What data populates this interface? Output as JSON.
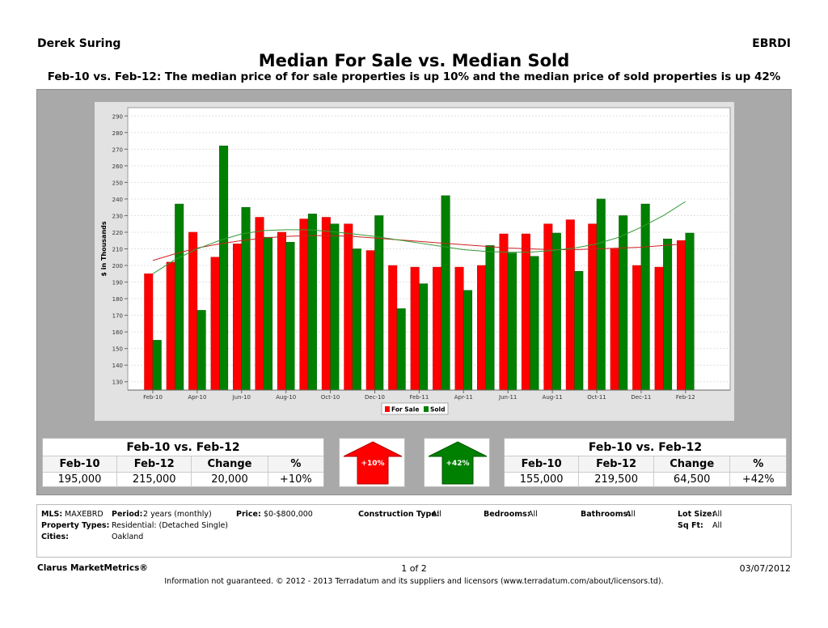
{
  "header": {
    "agent": "Derek Suring",
    "org": "EBRDI",
    "title": "Median For Sale vs. Median Sold",
    "subtitle": "Feb-10 vs. Feb-12:  The median price of for sale properties is up 10% and the median price of sold properties is up 42%"
  },
  "chart_data": {
    "type": "bar",
    "ylabel": "$ in Thousands",
    "ylim": [
      125,
      295
    ],
    "yticks": [
      130,
      140,
      150,
      160,
      170,
      180,
      190,
      200,
      210,
      220,
      230,
      240,
      250,
      260,
      270,
      280,
      290
    ],
    "grid": true,
    "legend_position": "bottom",
    "categories": [
      "Feb-10",
      "Mar-10",
      "Apr-10",
      "May-10",
      "Jun-10",
      "Jul-10",
      "Aug-10",
      "Sep-10",
      "Oct-10",
      "Nov-10",
      "Dec-10",
      "Jan-11",
      "Feb-11",
      "Mar-11",
      "Apr-11",
      "May-11",
      "Jun-11",
      "Jul-11",
      "Aug-11",
      "Sep-11",
      "Oct-11",
      "Nov-11",
      "Dec-11",
      "Jan-12",
      "Feb-12"
    ],
    "xtick_labels": [
      "Feb-10",
      "Apr-10",
      "Jun-10",
      "Aug-10",
      "Oct-10",
      "Dec-10",
      "Feb-11",
      "Apr-11",
      "Jun-11",
      "Aug-11",
      "Oct-11",
      "Dec-11",
      "Feb-12"
    ],
    "series": [
      {
        "name": "For Sale",
        "color": "#ff0000",
        "values": [
          195,
          202,
          220,
          205,
          213,
          229,
          220,
          228,
          229,
          225,
          209,
          200,
          199,
          199,
          199,
          200,
          219,
          219,
          225,
          227.5,
          225,
          210,
          200,
          199,
          215
        ]
      },
      {
        "name": "Sold",
        "color": "#008000",
        "values": [
          155,
          237,
          173,
          272,
          235,
          217,
          214,
          231,
          225,
          210,
          230,
          174,
          189,
          242,
          185,
          212,
          207.5,
          205.5,
          219.5,
          196.5,
          240,
          230,
          237,
          216,
          219.5
        ]
      }
    ],
    "trendlines": [
      {
        "series": "For Sale",
        "color": "#cc2222",
        "values": [
          203,
          207,
          210.5,
          213,
          215,
          216.5,
          217.5,
          218,
          218,
          217.5,
          216.5,
          215.5,
          214.5,
          213.5,
          212.5,
          211.5,
          210.5,
          210,
          209.5,
          209.5,
          210,
          210.5,
          211,
          212,
          213
        ]
      },
      {
        "series": "Sold",
        "color": "#339933",
        "values": [
          195,
          203.5,
          210,
          215,
          219,
          221,
          221.5,
          221.5,
          220.5,
          219,
          217.5,
          215.5,
          213.5,
          211.5,
          209.5,
          208.5,
          208,
          208,
          209,
          210.5,
          213,
          217,
          223,
          230,
          238.5
        ]
      }
    ]
  },
  "legend": {
    "for_sale": "For Sale",
    "sold": "Sold"
  },
  "forsale_box": {
    "title": "Feb-10 vs. Feb-12",
    "headers": [
      "Feb-10",
      "Feb-12",
      "Change",
      "%"
    ],
    "values": [
      "195,000",
      "215,000",
      "20,000",
      "+10%"
    ]
  },
  "sold_box": {
    "title": "Feb-10 vs. Feb-12",
    "headers": [
      "Feb-10",
      "Feb-12",
      "Change",
      "%"
    ],
    "values": [
      "155,000",
      "219,500",
      "64,500",
      "+42%"
    ]
  },
  "arrows": {
    "forsale_label": "+10%",
    "sold_label": "+42%",
    "up_color_forsale": "#ff0000",
    "up_color_sold": "#008000"
  },
  "info": {
    "mls_label": "MLS:",
    "mls": "MAXEBRD",
    "period_label": "Period:",
    "period": "2 years (monthly)",
    "price_label": "Price:",
    "price": "$0-$800,000",
    "construction_label": "Construction Type:",
    "construction": "All",
    "bedrooms_label": "Bedrooms:",
    "bedrooms": "All",
    "bathrooms_label": "Bathrooms:",
    "bathrooms": "All",
    "lotsize_label": "Lot Size:",
    "lotsize": "All",
    "ptypes_label": "Property Types:",
    "ptypes": "Residential: (Detached Single)",
    "sqft_label": "Sq Ft:",
    "sqft": "All",
    "cities_label": "Cities:",
    "cities": "Oakland"
  },
  "footer": {
    "brand": "Clarus MarketMetrics®",
    "page": "1 of 2",
    "date": "03/07/2012",
    "note": "Information not guaranteed.  © 2012 - 2013 Terradatum and its suppliers and licensors (www.terradatum.com/about/licensors.td)."
  }
}
